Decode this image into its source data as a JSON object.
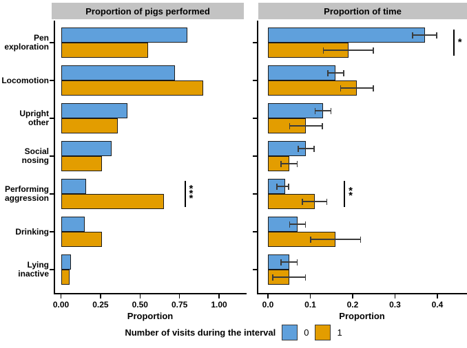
{
  "colors": {
    "series_0": "#5FA0DC",
    "series_1": "#E39D00",
    "strip_bg": "#C3C3C3",
    "bar_border": "#1A1A1A",
    "axis": "#000000",
    "error_bar": "#3A3A3A",
    "significance": "#000000"
  },
  "legend": {
    "title": "Number of visits during the interval",
    "items": [
      {
        "label": "0",
        "color_key": "series_0"
      },
      {
        "label": "1",
        "color_key": "series_1"
      }
    ]
  },
  "categories": [
    "Pen exploration",
    "Locomotion",
    "Upright other",
    "Social nosing",
    "Performing aggression",
    "Drinking",
    "Lying inactive"
  ],
  "category_label_lines": [
    [
      "Pen",
      "exploration"
    ],
    [
      "Locomotion"
    ],
    [
      "Upright",
      "other"
    ],
    [
      "Social",
      "nosing"
    ],
    [
      "Performing",
      "aggression"
    ],
    [
      "Drinking"
    ],
    [
      "Lying",
      "inactive"
    ]
  ],
  "chart_data": [
    {
      "type": "bar",
      "orientation": "horizontal",
      "title": "Proportion of pigs performed",
      "xlabel": "Proportion",
      "xlim": [
        0,
        1.174
      ],
      "xticks": [
        0,
        0.25,
        0.5,
        0.75,
        1.0
      ],
      "xtick_labels": [
        "0.00",
        "0.25",
        "0.50",
        "0.75",
        "1.00"
      ],
      "grid": false,
      "categories": [
        "Pen exploration",
        "Locomotion",
        "Upright other",
        "Social nosing",
        "Performing aggression",
        "Drinking",
        "Lying inactive"
      ],
      "series": [
        {
          "name": "0",
          "values": [
            0.8,
            0.72,
            0.42,
            0.32,
            0.16,
            0.15,
            0.065
          ]
        },
        {
          "name": "1",
          "values": [
            0.55,
            0.9,
            0.36,
            0.26,
            0.65,
            0.26,
            0.055
          ]
        }
      ],
      "significance": [
        {
          "category": "Performing aggression",
          "stars": "***",
          "x": 0.78
        }
      ]
    },
    {
      "type": "bar",
      "orientation": "horizontal",
      "title": "Proportion of time",
      "xlabel": "Proportion",
      "xlim": [
        0,
        0.47
      ],
      "xticks": [
        0,
        0.1,
        0.2,
        0.3,
        0.4
      ],
      "xtick_labels": [
        "0.0",
        "0.1",
        "0.2",
        "0.3",
        "0.4"
      ],
      "grid": false,
      "categories": [
        "Pen exploration",
        "Locomotion",
        "Upright other",
        "Social nosing",
        "Performing aggression",
        "Drinking",
        "Lying inactive"
      ],
      "series": [
        {
          "name": "0",
          "values": [
            0.37,
            0.16,
            0.13,
            0.09,
            0.04,
            0.07,
            0.05
          ],
          "errors": [
            [
              0.34,
              0.4
            ],
            [
              0.14,
              0.18
            ],
            [
              0.11,
              0.15
            ],
            [
              0.07,
              0.11
            ],
            [
              0.02,
              0.05
            ],
            [
              0.05,
              0.09
            ],
            [
              0.03,
              0.07
            ]
          ]
        },
        {
          "name": "1",
          "values": [
            0.19,
            0.21,
            0.09,
            0.05,
            0.11,
            0.16,
            0.05
          ],
          "errors": [
            [
              0.13,
              0.25
            ],
            [
              0.17,
              0.25
            ],
            [
              0.05,
              0.13
            ],
            [
              0.03,
              0.07
            ],
            [
              0.08,
              0.14
            ],
            [
              0.1,
              0.22
            ],
            [
              0.01,
              0.09
            ]
          ]
        }
      ],
      "significance": [
        {
          "category": "Pen exploration",
          "stars": "*",
          "x": 0.437
        },
        {
          "category": "Performing aggression",
          "stars": "**",
          "x": 0.179
        }
      ]
    }
  ]
}
